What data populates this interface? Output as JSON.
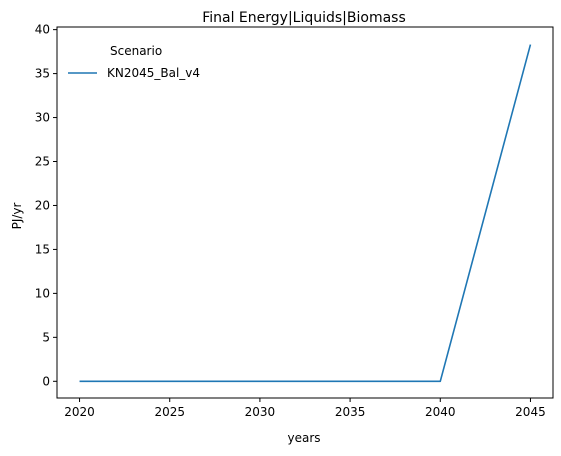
{
  "chart_data": {
    "type": "line",
    "title": "Final Energy|Liquids|Biomass",
    "xlabel": "years",
    "ylabel": "PJ/yr",
    "x": [
      2020,
      2025,
      2030,
      2035,
      2040,
      2045
    ],
    "xticks": [
      2020,
      2025,
      2030,
      2035,
      2040,
      2045
    ],
    "yticks": [
      0,
      5,
      10,
      15,
      20,
      25,
      30,
      35,
      40
    ],
    "xlim": [
      2018.75,
      2046.25
    ],
    "ylim": [
      -1.9,
      40.3
    ],
    "grid": false,
    "legend": {
      "title": "Scenario",
      "placement": "top-left"
    },
    "series": [
      {
        "name": "KN2045_Bal_v4",
        "color": "#1f77b4",
        "values": [
          0,
          0,
          0,
          0,
          0,
          38.3
        ]
      }
    ]
  }
}
